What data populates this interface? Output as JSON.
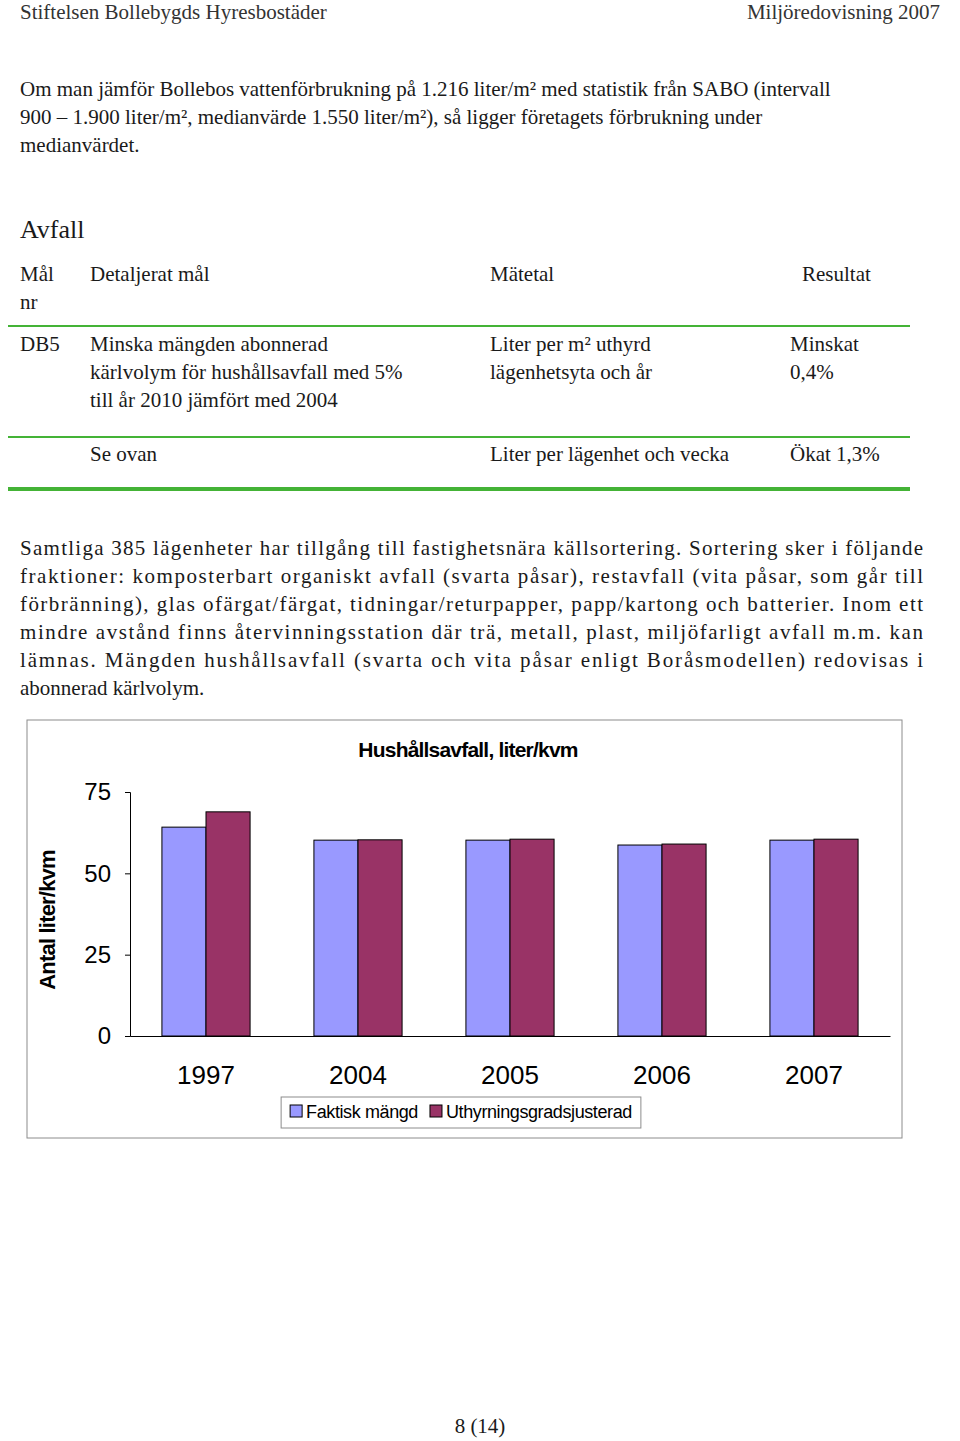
{
  "header": {
    "left": "Stiftelsen Bollebygds Hyresbostäder",
    "right": "Miljöredovisning 2007"
  },
  "intro": [
    "Om man jämför Bollebos vattenförbrukning på 1.216 liter/m² med statistik från SABO (intervall",
    "900 – 1.900 liter/m², medianvärde 1.550 liter/m²), så ligger företagets förbrukning under",
    "medianvärdet."
  ],
  "section_title": "Avfall",
  "table": {
    "header": [
      [
        "Mål",
        "nr"
      ],
      [
        "Detaljerat mål"
      ],
      [
        "Mätetal"
      ],
      [
        "Resultat"
      ]
    ],
    "rows": [
      [
        [
          "DB5"
        ],
        [
          "Minska mängden abonnerad",
          "kärlvolym för hushållsavfall med 5%",
          "till år 2010 jämfört med 2004"
        ],
        [
          "Liter per m² uthyrd",
          "lägenhetsyta och år"
        ],
        [
          "Minskat",
          "0,4%"
        ]
      ],
      [
        [],
        [
          "Se ovan"
        ],
        [
          "Liter per lägenhet och vecka"
        ],
        [
          "Ökat 1,3%"
        ]
      ]
    ]
  },
  "body": [
    "Samtliga 385 lägenheter har tillgång till fastighetsnära källsortering. Sortering sker i följande",
    "fraktioner: komposterbart organiskt avfall (svarta påsar), restavfall (vita påsar, som går till",
    "förbränning), glas ofärgat/färgat, tidningar/returpapper, papp/kartong och batterier. Inom ett",
    "mindre avstånd finns återvinningsstation där trä, metall, plast, miljöfarligt avfall m.m. kan",
    "lämnas. Mängden hushållsavfall (svarta och vita påsar enligt Boråsmodellen) redovisas i",
    "abonnerad kärlvolym."
  ],
  "chart_data": {
    "type": "bar",
    "title": "Hushållsavfall, liter/kvm",
    "y_label": "Antal liter/kvm",
    "categories": [
      "1997",
      "2004",
      "2005",
      "2006",
      "2007"
    ],
    "series": [
      {
        "name": "Faktisk mängd",
        "color": "#9999ff",
        "values": [
          64.2,
          60.2,
          60.2,
          58.7,
          60.2
        ]
      },
      {
        "name": "Uthyrningsgradsjusterad",
        "color": "#993366",
        "values": [
          68.9,
          60.3,
          60.5,
          59.0,
          60.5
        ]
      }
    ],
    "ylim": [
      0,
      75
    ],
    "yticks": [
      0,
      25,
      50,
      75
    ],
    "legend": "bottom"
  },
  "footer": "8 (14)"
}
